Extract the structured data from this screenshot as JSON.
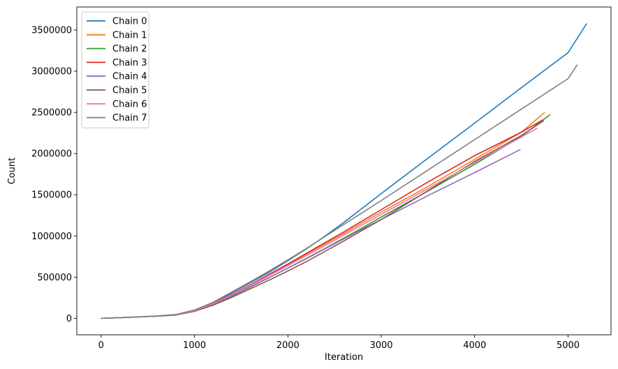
{
  "chart_data": {
    "type": "line",
    "title": "",
    "xlabel": "Iteration",
    "ylabel": "Count",
    "xlim": [
      -260,
      5460
    ],
    "ylim": [
      -200000,
      3780000
    ],
    "xticks": [
      0,
      1000,
      2000,
      3000,
      4000,
      5000
    ],
    "yticks": [
      0,
      500000,
      1000000,
      1500000,
      2000000,
      2500000,
      3000000,
      3500000
    ],
    "grid": false,
    "legend_position": "top-left",
    "series": [
      {
        "name": "Chain 0",
        "color": "#1f77b4",
        "points": [
          [
            0,
            0
          ],
          [
            200,
            8000
          ],
          [
            400,
            18000
          ],
          [
            600,
            28000
          ],
          [
            800,
            45000
          ],
          [
            1000,
            100000
          ],
          [
            1200,
            190000
          ],
          [
            1400,
            310000
          ],
          [
            1600,
            435000
          ],
          [
            1800,
            560000
          ],
          [
            2000,
            700000
          ],
          [
            2200,
            845000
          ],
          [
            2400,
            1000000
          ],
          [
            2600,
            1165000
          ],
          [
            2800,
            1340000
          ],
          [
            3000,
            1515000
          ],
          [
            3500,
            1945000
          ],
          [
            4000,
            2370000
          ],
          [
            4500,
            2800000
          ],
          [
            5000,
            3225000
          ],
          [
            5200,
            3580000
          ]
        ]
      },
      {
        "name": "Chain 1",
        "color": "#ff7f0e",
        "points": [
          [
            0,
            0
          ],
          [
            200,
            8000
          ],
          [
            400,
            18000
          ],
          [
            600,
            28000
          ],
          [
            800,
            45000
          ],
          [
            1000,
            95000
          ],
          [
            1200,
            180000
          ],
          [
            1400,
            290000
          ],
          [
            1600,
            405000
          ],
          [
            1800,
            525000
          ],
          [
            2000,
            650000
          ],
          [
            2200,
            780000
          ],
          [
            2400,
            905000
          ],
          [
            2600,
            1030000
          ],
          [
            2800,
            1160000
          ],
          [
            3000,
            1290000
          ],
          [
            3500,
            1600000
          ],
          [
            4000,
            1930000
          ],
          [
            4500,
            2260000
          ],
          [
            4750,
            2500000
          ]
        ]
      },
      {
        "name": "Chain 2",
        "color": "#2ca02c",
        "points": [
          [
            0,
            0
          ],
          [
            200,
            8000
          ],
          [
            400,
            17000
          ],
          [
            600,
            27000
          ],
          [
            800,
            42000
          ],
          [
            1000,
            88000
          ],
          [
            1200,
            170000
          ],
          [
            1400,
            270000
          ],
          [
            1600,
            380000
          ],
          [
            1800,
            495000
          ],
          [
            2000,
            610000
          ],
          [
            2200,
            730000
          ],
          [
            2400,
            850000
          ],
          [
            2600,
            975000
          ],
          [
            2800,
            1100000
          ],
          [
            3000,
            1230000
          ],
          [
            3500,
            1545000
          ],
          [
            4000,
            1870000
          ],
          [
            4500,
            2210000
          ],
          [
            4810,
            2475000
          ]
        ]
      },
      {
        "name": "Chain 3",
        "color": "#d62728",
        "points": [
          [
            0,
            0
          ],
          [
            200,
            8000
          ],
          [
            400,
            18000
          ],
          [
            600,
            28000
          ],
          [
            800,
            45000
          ],
          [
            1000,
            95000
          ],
          [
            1200,
            180000
          ],
          [
            1400,
            292000
          ],
          [
            1600,
            410000
          ],
          [
            1800,
            535000
          ],
          [
            2000,
            660000
          ],
          [
            2200,
            790000
          ],
          [
            2400,
            920000
          ],
          [
            2600,
            1050000
          ],
          [
            2800,
            1185000
          ],
          [
            3000,
            1320000
          ],
          [
            3500,
            1655000
          ],
          [
            4000,
            1975000
          ],
          [
            4500,
            2260000
          ],
          [
            4730,
            2410000
          ]
        ]
      },
      {
        "name": "Chain 4",
        "color": "#9467bd",
        "points": [
          [
            0,
            0
          ],
          [
            200,
            8000
          ],
          [
            400,
            17000
          ],
          [
            600,
            27000
          ],
          [
            800,
            43000
          ],
          [
            1000,
            90000
          ],
          [
            1200,
            172000
          ],
          [
            1400,
            275000
          ],
          [
            1600,
            385000
          ],
          [
            1800,
            497000
          ],
          [
            2000,
            610000
          ],
          [
            2200,
            725000
          ],
          [
            2400,
            845000
          ],
          [
            2600,
            965000
          ],
          [
            2800,
            1085000
          ],
          [
            3000,
            1200000
          ],
          [
            3500,
            1490000
          ],
          [
            4000,
            1770000
          ],
          [
            4490,
            2050000
          ]
        ]
      },
      {
        "name": "Chain 5",
        "color": "#8c564b",
        "points": [
          [
            0,
            0
          ],
          [
            200,
            8000
          ],
          [
            400,
            17000
          ],
          [
            600,
            26000
          ],
          [
            800,
            40000
          ],
          [
            1000,
            85000
          ],
          [
            1200,
            160000
          ],
          [
            1400,
            255000
          ],
          [
            1600,
            360000
          ],
          [
            1800,
            465000
          ],
          [
            2000,
            575000
          ],
          [
            2200,
            690000
          ],
          [
            2400,
            815000
          ],
          [
            2600,
            940000
          ],
          [
            2800,
            1070000
          ],
          [
            3000,
            1200000
          ],
          [
            3500,
            1550000
          ],
          [
            4000,
            1905000
          ],
          [
            4500,
            2220000
          ],
          [
            4740,
            2400000
          ]
        ]
      },
      {
        "name": "Chain 6",
        "color": "#e377c2",
        "points": [
          [
            0,
            0
          ],
          [
            200,
            8000
          ],
          [
            400,
            18000
          ],
          [
            600,
            28000
          ],
          [
            800,
            44000
          ],
          [
            1000,
            93000
          ],
          [
            1200,
            178000
          ],
          [
            1400,
            288000
          ],
          [
            1600,
            402000
          ],
          [
            1800,
            520000
          ],
          [
            2000,
            640000
          ],
          [
            2200,
            762000
          ],
          [
            2400,
            885000
          ],
          [
            2600,
            1010000
          ],
          [
            2800,
            1135000
          ],
          [
            3000,
            1262000
          ],
          [
            3500,
            1575000
          ],
          [
            4000,
            1890000
          ],
          [
            4500,
            2200000
          ],
          [
            4670,
            2310000
          ]
        ]
      },
      {
        "name": "Chain 7",
        "color": "#7f7f7f",
        "points": [
          [
            0,
            0
          ],
          [
            200,
            8000
          ],
          [
            400,
            18000
          ],
          [
            600,
            28000
          ],
          [
            800,
            46000
          ],
          [
            1000,
            102000
          ],
          [
            1200,
            195000
          ],
          [
            1400,
            320000
          ],
          [
            1600,
            445000
          ],
          [
            1800,
            575000
          ],
          [
            2000,
            710000
          ],
          [
            2200,
            850000
          ],
          [
            2400,
            995000
          ],
          [
            2600,
            1140000
          ],
          [
            2800,
            1285000
          ],
          [
            3000,
            1430000
          ],
          [
            3500,
            1800000
          ],
          [
            4000,
            2170000
          ],
          [
            4500,
            2540000
          ],
          [
            5000,
            2910000
          ],
          [
            5100,
            3080000
          ]
        ]
      }
    ]
  }
}
